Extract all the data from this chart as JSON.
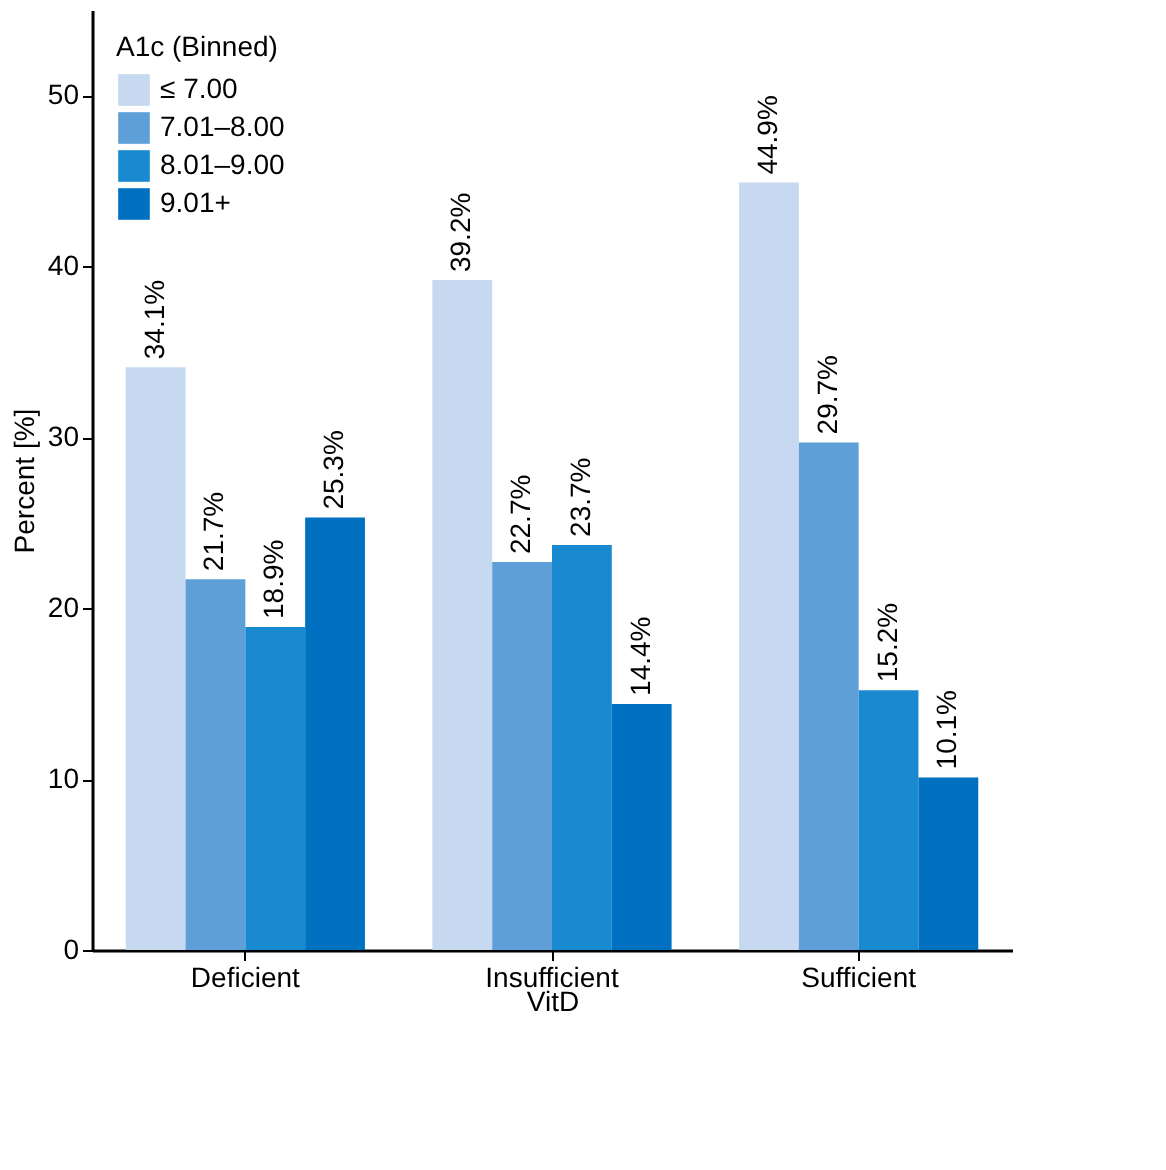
{
  "chart_data": {
    "type": "bar",
    "xlabel": "VitD",
    "ylabel": "Percent [%]",
    "legend_title": "A1c (Binned)",
    "categories": [
      "Deficient",
      "Insufficient",
      "Sufficient"
    ],
    "series": [
      {
        "name": "≤ 7.00",
        "color": "#c6d9f0",
        "values": [
          34.1,
          39.2,
          44.9
        ],
        "value_labels": [
          "34.1%",
          "39.2%",
          "44.9%"
        ]
      },
      {
        "name": "7.01–8.00",
        "color": "#5f9fd8",
        "values": [
          21.7,
          22.7,
          29.7
        ],
        "value_labels": [
          "21.7%",
          "22.7%",
          "29.7%"
        ]
      },
      {
        "name": "8.01–9.00",
        "color": "#1a8ad0",
        "values": [
          18.9,
          23.7,
          15.2
        ],
        "value_labels": [
          "18.9%",
          "23.7%",
          "15.2%"
        ]
      },
      {
        "name": "9.01+",
        "color": "#0070c0",
        "values": [
          25.3,
          14.4,
          10.1
        ],
        "value_labels": [
          "25.3%",
          "14.4%",
          "10.1%"
        ]
      }
    ],
    "ylim": [
      0,
      55
    ],
    "yticks": [
      0,
      10,
      20,
      30,
      40,
      50
    ],
    "grid": false,
    "legend": "top left"
  }
}
